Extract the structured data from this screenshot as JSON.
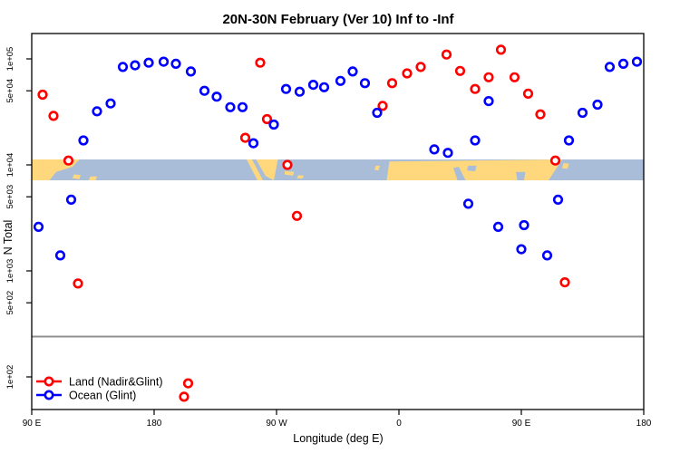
{
  "chart_data": {
    "type": "scatter",
    "title": "20N-30N February (Ver 10)   Inf to -Inf",
    "xlabel": "Longitude (deg E)",
    "ylabel": "N Total",
    "x_axis": {
      "unit": "deg E",
      "span_deg": 450,
      "ticks": [
        {
          "offset_deg": 0,
          "label": "90 E"
        },
        {
          "offset_deg": 90,
          "label": "180"
        },
        {
          "offset_deg": 180,
          "label": "90 W"
        },
        {
          "offset_deg": 270,
          "label": "0"
        },
        {
          "offset_deg": 360,
          "label": "90 E"
        },
        {
          "offset_deg": 450,
          "label": "180"
        }
      ]
    },
    "y_axis": {
      "scale": "log",
      "range": [
        50,
        170000
      ],
      "ticks": [
        {
          "value": 100000,
          "label": "1e+05"
        },
        {
          "value": 50000,
          "label": "5e+04"
        },
        {
          "value": 10000,
          "label": "1e+04"
        },
        {
          "value": 5000,
          "label": "5e+03"
        },
        {
          "value": 1000,
          "label": "1e+03"
        },
        {
          "value": 500,
          "label": "5e+02"
        },
        {
          "value": 100,
          "label": "1e+02"
        }
      ]
    },
    "reference_line_value": 240,
    "legend": [
      {
        "label": "Land (Nadir&Glint)",
        "color": "#ff0000"
      },
      {
        "label": "Ocean (Glint)",
        "color": "#0000ff"
      }
    ],
    "colors": {
      "land_series": "#ff0000",
      "ocean_series": "#0000ff",
      "map_land": "#ffd87e",
      "map_ocean": "#a9bdd8",
      "reference_line": "#909090",
      "axis": "#000000"
    },
    "map_band": {
      "value_top": 11250,
      "value_bottom": 7160,
      "shapes": [
        {
          "fill": "land",
          "pts": [
            [
              0,
              0
            ],
            [
              35,
              0
            ],
            [
              30,
              0.35
            ],
            [
              18,
              0.6
            ],
            [
              13,
              1
            ],
            [
              0,
              1
            ]
          ]
        },
        {
          "fill": "land",
          "pts": [
            [
              31,
              0.72
            ],
            [
              36,
              0.75
            ],
            [
              35,
              0.95
            ],
            [
              30,
              0.9
            ]
          ]
        },
        {
          "fill": "land",
          "pts": [
            [
              43,
              0.82
            ],
            [
              48,
              0.82
            ],
            [
              47,
              1
            ],
            [
              42,
              1
            ]
          ]
        },
        {
          "fill": "land",
          "pts": [
            [
              158,
              0
            ],
            [
              162,
              0
            ],
            [
              170,
              1
            ],
            [
              166,
              1
            ]
          ]
        },
        {
          "fill": "land",
          "pts": [
            [
              165,
              0
            ],
            [
              181,
              0
            ],
            [
              178,
              1
            ],
            [
              172,
              0.8
            ]
          ]
        },
        {
          "fill": "land",
          "pts": [
            [
              186,
              0.55
            ],
            [
              193,
              0.6
            ],
            [
              192,
              0.78
            ],
            [
              186,
              0.72
            ]
          ]
        },
        {
          "fill": "land",
          "pts": [
            [
              196,
              0.75
            ],
            [
              200,
              0.78
            ],
            [
              199,
              0.92
            ],
            [
              195,
              0.9
            ]
          ]
        },
        {
          "fill": "land",
          "pts": [
            [
              253,
              0.3
            ],
            [
              256,
              0.3
            ],
            [
              255,
              0.52
            ],
            [
              252,
              0.5
            ]
          ]
        },
        {
          "fill": "land",
          "pts": [
            [
              263,
              0.1
            ],
            [
              390,
              0
            ],
            [
              380,
              1
            ],
            [
              261,
              1
            ]
          ]
        },
        {
          "fill": "ocean",
          "pts": [
            [
              310,
              0.4
            ],
            [
              314,
              0.35
            ],
            [
              319,
              1
            ],
            [
              313,
              1
            ]
          ]
        },
        {
          "fill": "ocean",
          "pts": [
            [
              321,
              0.3
            ],
            [
              327,
              0.3
            ],
            [
              326,
              0.58
            ],
            [
              320,
              0.52
            ]
          ]
        },
        {
          "fill": "ocean",
          "pts": [
            [
              356,
              0.6
            ],
            [
              363,
              0.6
            ],
            [
              362,
              1
            ],
            [
              357,
              1
            ]
          ]
        },
        {
          "fill": "land",
          "pts": [
            [
              391,
              0.18
            ],
            [
              395,
              0.2
            ],
            [
              394,
              0.45
            ],
            [
              390,
              0.42
            ]
          ]
        }
      ]
    },
    "series": [
      {
        "name": "Land (Nadir&Glint)",
        "color": "#ff0000",
        "points": [
          [
            8,
            46000
          ],
          [
            16,
            29000
          ],
          [
            27,
            11000
          ],
          [
            34,
            760
          ],
          [
            112,
            65
          ],
          [
            115,
            87
          ],
          [
            157,
            18000
          ],
          [
            168,
            92000
          ],
          [
            173,
            27000
          ],
          [
            188,
            10000
          ],
          [
            195,
            3300
          ],
          [
            258,
            36000
          ],
          [
            265,
            59000
          ],
          [
            276,
            73000
          ],
          [
            286,
            84000
          ],
          [
            305,
            110000
          ],
          [
            315,
            77000
          ],
          [
            326,
            52000
          ],
          [
            336,
            67000
          ],
          [
            345,
            122000
          ],
          [
            355,
            67000
          ],
          [
            365,
            47000
          ],
          [
            374,
            30000
          ],
          [
            385,
            11000
          ],
          [
            392,
            780
          ]
        ]
      },
      {
        "name": "Ocean (Glint)",
        "color": "#0000ff",
        "points": [
          [
            5,
            2600
          ],
          [
            21,
            1400
          ],
          [
            29,
            4700
          ],
          [
            38,
            17000
          ],
          [
            48,
            32000
          ],
          [
            58,
            38000
          ],
          [
            67,
            84000
          ],
          [
            76,
            87000
          ],
          [
            86,
            92000
          ],
          [
            97,
            94000
          ],
          [
            106,
            90000
          ],
          [
            117,
            76000
          ],
          [
            127,
            50000
          ],
          [
            136,
            44000
          ],
          [
            146,
            35000
          ],
          [
            155,
            35000
          ],
          [
            163,
            16000
          ],
          [
            178,
            24000
          ],
          [
            187,
            52000
          ],
          [
            197,
            49000
          ],
          [
            207,
            57000
          ],
          [
            215,
            54000
          ],
          [
            227,
            62000
          ],
          [
            236,
            76000
          ],
          [
            245,
            59000
          ],
          [
            254,
            31000
          ],
          [
            296,
            14000
          ],
          [
            306,
            13000
          ],
          [
            321,
            4300
          ],
          [
            326,
            17000
          ],
          [
            336,
            40000
          ],
          [
            343,
            2600
          ],
          [
            360,
            1600
          ],
          [
            362,
            2700
          ],
          [
            379,
            1400
          ],
          [
            387,
            4700
          ],
          [
            395,
            17000
          ],
          [
            405,
            31000
          ],
          [
            416,
            37000
          ],
          [
            425,
            84000
          ],
          [
            435,
            90000
          ],
          [
            445,
            94000
          ]
        ]
      }
    ]
  }
}
